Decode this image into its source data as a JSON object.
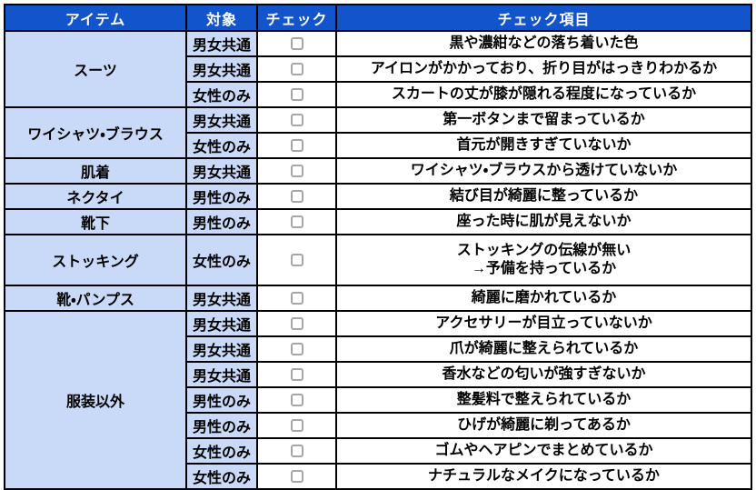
{
  "colors": {
    "header_bg": "#1254CB",
    "header_text": "#FFFFFF",
    "cell_blue": "#C9DAF8",
    "border_color": "#000000",
    "checkbox_border": "#A6A6A6",
    "text_color": "#000000"
  },
  "table": {
    "headers": [
      "アイテム",
      "対象",
      "チェック",
      "チェック項目"
    ],
    "groups": [
      {
        "item": "スーツ",
        "rows": [
          {
            "target": "男女共通",
            "checked": false,
            "check_item": "黒や濃紺などの落ち着いた色"
          },
          {
            "target": "男女共通",
            "checked": false,
            "check_item": "アイロンがかかっており、折り目がはっきりわかるか"
          },
          {
            "target": "女性のみ",
            "checked": false,
            "check_item": "スカートの丈が膝が隠れる程度になっているか"
          }
        ]
      },
      {
        "item": "ワイシャツ・ブラウス",
        "rows": [
          {
            "target": "男女共通",
            "checked": false,
            "check_item": "第一ボタンまで留まっているか"
          },
          {
            "target": "女性のみ",
            "checked": false,
            "check_item": "首元が開きすぎていないか"
          }
        ]
      },
      {
        "item": "肌着",
        "rows": [
          {
            "target": "男女共通",
            "checked": false,
            "check_item": "ワイシャツ・ブラウスから透けていないか"
          }
        ]
      },
      {
        "item": "ネクタイ",
        "rows": [
          {
            "target": "男性のみ",
            "checked": false,
            "check_item": "結び目が綺麗に整っているか"
          }
        ]
      },
      {
        "item": "靴下",
        "rows": [
          {
            "target": "男性のみ",
            "checked": false,
            "check_item": "座った時に肌が見えないか"
          }
        ]
      },
      {
        "item": "ストッキング",
        "rows": [
          {
            "target": "女性のみ",
            "checked": false,
            "check_item": "ストッキングの伝線が無い\n→予備を持っているか"
          }
        ]
      },
      {
        "item": "靴・パンプス",
        "rows": [
          {
            "target": "男女共通",
            "checked": false,
            "check_item": "綺麗に磨かれているか"
          }
        ]
      },
      {
        "item": "服装以外",
        "rows": [
          {
            "target": "男女共通",
            "checked": false,
            "check_item": "アクセサリーが目立っていないか"
          },
          {
            "target": "男女共通",
            "checked": false,
            "check_item": "爪が綺麗に整えられているか"
          },
          {
            "target": "男女共通",
            "checked": false,
            "check_item": "香水などの匂いが強すぎないか"
          },
          {
            "target": "男性のみ",
            "checked": false,
            "check_item": "整髪料で整えられているか"
          },
          {
            "target": "男性のみ",
            "checked": false,
            "check_item": "ひげが綺麗に剃ってあるか"
          },
          {
            "target": "女性のみ",
            "checked": false,
            "check_item": "ゴムやヘアピンでまとめているか"
          },
          {
            "target": "女性のみ",
            "checked": false,
            "check_item": "ナチュラルなメイクになっているか"
          }
        ]
      }
    ]
  }
}
